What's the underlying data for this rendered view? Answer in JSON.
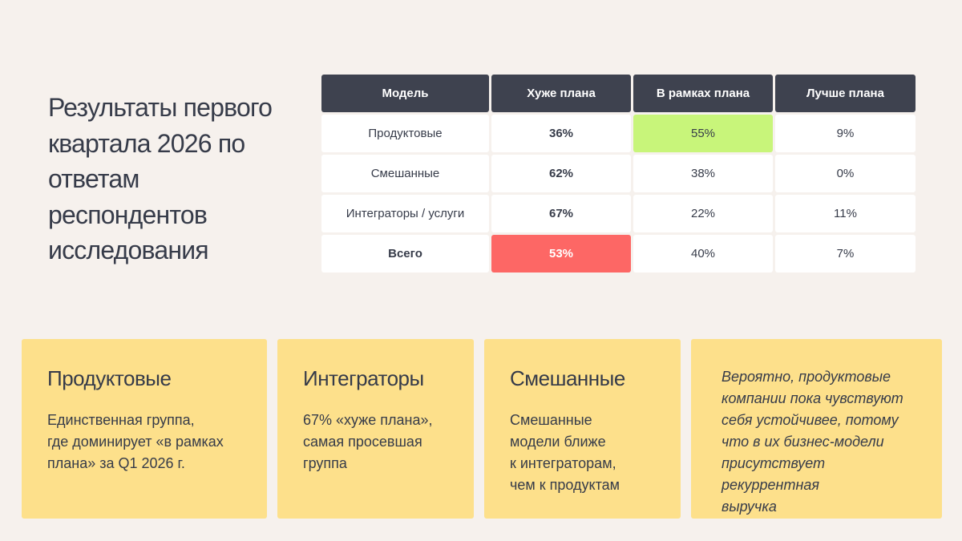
{
  "title": "Результаты первого квартала 2026 по ответам респондентов исследования",
  "table": {
    "headers": [
      "Модель",
      "Хуже плана",
      "В рамках плана",
      "Лучше плана"
    ],
    "rows": [
      {
        "model": "Продуктовые",
        "worse": "36%",
        "within": "55%",
        "better": "9%"
      },
      {
        "model": "Смешанные",
        "worse": "62%",
        "within": "38%",
        "better": "0%"
      },
      {
        "model": "Интеграторы / услуги",
        "worse": "67%",
        "within": "22%",
        "better": "11%"
      },
      {
        "model": "Всего",
        "worse": "53%",
        "within": "40%",
        "better": "7%"
      }
    ]
  },
  "colors": {
    "background": "#f6f1ed",
    "header": "#3e424f",
    "highlight_green": "#c8f57a",
    "highlight_red": "#fd6765",
    "card": "#fde08b"
  },
  "cards": [
    {
      "heading": "Продуктовые",
      "text": "Единственная группа,\nгде доминирует «в рамках\nплана» за Q1 2026 г."
    },
    {
      "heading": "Интеграторы",
      "text": "67% «хуже плана»,\nсамая просевшая\nгруппа"
    },
    {
      "heading": "Смешанные",
      "text": "Смешанные\nмодели ближе\nк интеграторам,\nчем к продуктам"
    }
  ],
  "note": "Вероятно, продуктовые\nкомпании пока чувствуют\nсебя устойчивее, потому\nчто в их бизнес-модели\nприсутствует рекуррентная\nвыручка"
}
